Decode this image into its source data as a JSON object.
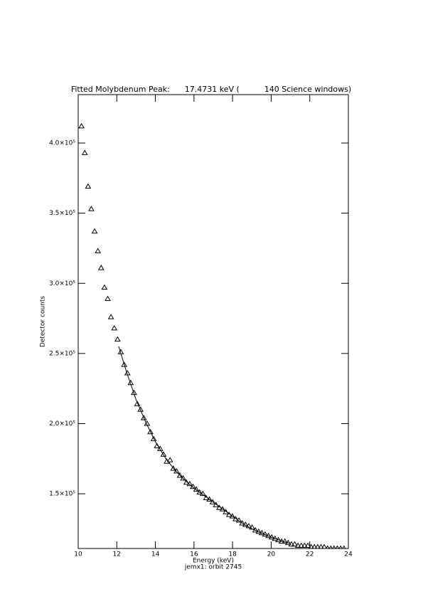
{
  "chart_data": {
    "type": "scatter",
    "title": "Fitted Molybdenum Peak:      17.4731 keV (          140 Science windows)",
    "xlabel": "Energy (keV)",
    "ylabel": "Detector counts",
    "footnote": "jemx1: orbit 2745",
    "xlim": [
      10,
      24
    ],
    "ylim": [
      111000,
      434500
    ],
    "xticks": [
      10,
      12,
      14,
      16,
      18,
      20,
      22,
      24
    ],
    "yticks": [
      {
        "value": 150000,
        "label": "1.5×10⁵"
      },
      {
        "value": 200000,
        "label": "2.0×10⁵"
      },
      {
        "value": 250000,
        "label": "2.5×10⁵"
      },
      {
        "value": 300000,
        "label": "3.0×10⁵"
      },
      {
        "value": 350000,
        "label": "3.5×10⁵"
      },
      {
        "value": 400000,
        "label": "4.0×10⁵"
      }
    ],
    "series": [
      {
        "color": "#000000",
        "marker": "triangle",
        "x": [
          10.17,
          10.34,
          10.51,
          10.68,
          10.85,
          11.02,
          11.19,
          11.36,
          11.53,
          11.7,
          11.87,
          12.04,
          12.21,
          12.38,
          12.55,
          12.72,
          12.89,
          13.06,
          13.23,
          13.4,
          13.57,
          13.74,
          13.91,
          14.08,
          14.25,
          14.42,
          14.59,
          14.76,
          14.93,
          15.1,
          15.27,
          15.44,
          15.61,
          15.78,
          15.95,
          16.12,
          16.29,
          16.46,
          16.63,
          16.8,
          16.97,
          17.14,
          17.31,
          17.48,
          17.65,
          17.82,
          17.99,
          18.16,
          18.33,
          18.5,
          18.67,
          18.84,
          19.01,
          19.18,
          19.35,
          19.52,
          19.69,
          19.86,
          20.03,
          20.2,
          20.37,
          20.54,
          20.71,
          20.88,
          21.05,
          21.22,
          21.39,
          21.56,
          21.73,
          21.9,
          22.07,
          22.24,
          22.41,
          22.58,
          22.75,
          22.92,
          23.09,
          23.26,
          23.43,
          23.6,
          23.77
        ],
        "values": [
          412000,
          393000,
          369000,
          353000,
          337000,
          323000,
          311000,
          297000,
          289000,
          276000,
          268000,
          260000,
          251000,
          242000,
          236000,
          229000,
          222000,
          214000,
          210000,
          204000,
          200000,
          194000,
          189000,
          184000,
          182000,
          178000,
          173000,
          174000,
          168000,
          166000,
          163000,
          161000,
          158000,
          157000,
          155000,
          153000,
          151000,
          150000,
          147000,
          146000,
          144000,
          142000,
          140000,
          139000,
          137000,
          135000,
          134000,
          132000,
          131000,
          129000,
          128000,
          127000,
          126000,
          124000,
          123000,
          122000,
          121000,
          120000,
          119000,
          118000,
          117000,
          116000,
          116000,
          115000,
          114000,
          114000,
          113000,
          113000,
          113000,
          113000,
          112000,
          112000,
          112000,
          112000,
          112000,
          111000,
          111000,
          111000,
          111000,
          111000,
          111000
        ]
      },
      {
        "color": "#000000",
        "marker": "line",
        "x": [
          12.1,
          12.5,
          13,
          13.5,
          14,
          14.5,
          15,
          15.5,
          16,
          16.5,
          17,
          17.5,
          18,
          18.5,
          19,
          19.5,
          20,
          20.5,
          21
        ],
        "values": [
          255000,
          237000,
          217000,
          201000,
          187000,
          176000,
          167000,
          160000,
          154000,
          149000,
          144000,
          139000,
          134000,
          129000,
          125000,
          122000,
          119000,
          116500,
          114500
        ]
      }
    ]
  }
}
